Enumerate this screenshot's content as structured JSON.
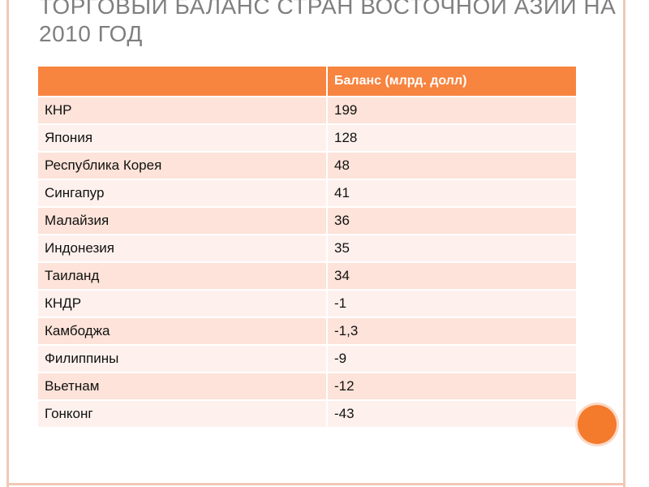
{
  "slide": {
    "title_lines": [
      "Торговый баланс стран Восточной Азии на",
      "2010 год"
    ],
    "accent_color": "#f7843f",
    "frame_color": "#f2c7b6"
  },
  "table": {
    "headers": [
      "",
      "Баланс (млрд. долл)"
    ],
    "rows": [
      [
        "КНР",
        "199"
      ],
      [
        "Япония",
        "128"
      ],
      [
        "Республика Корея",
        "48"
      ],
      [
        "Сингапур",
        "41"
      ],
      [
        "Малайзия",
        "36"
      ],
      [
        "Индонезия",
        "35"
      ],
      [
        "Таиланд",
        "34"
      ],
      [
        "КНДР",
        "-1"
      ],
      [
        "Камбоджа",
        "-1,3"
      ],
      [
        "Филиппины",
        "-9"
      ],
      [
        "Вьетнам",
        "-12"
      ],
      [
        "Гонконг",
        "-43"
      ]
    ]
  }
}
